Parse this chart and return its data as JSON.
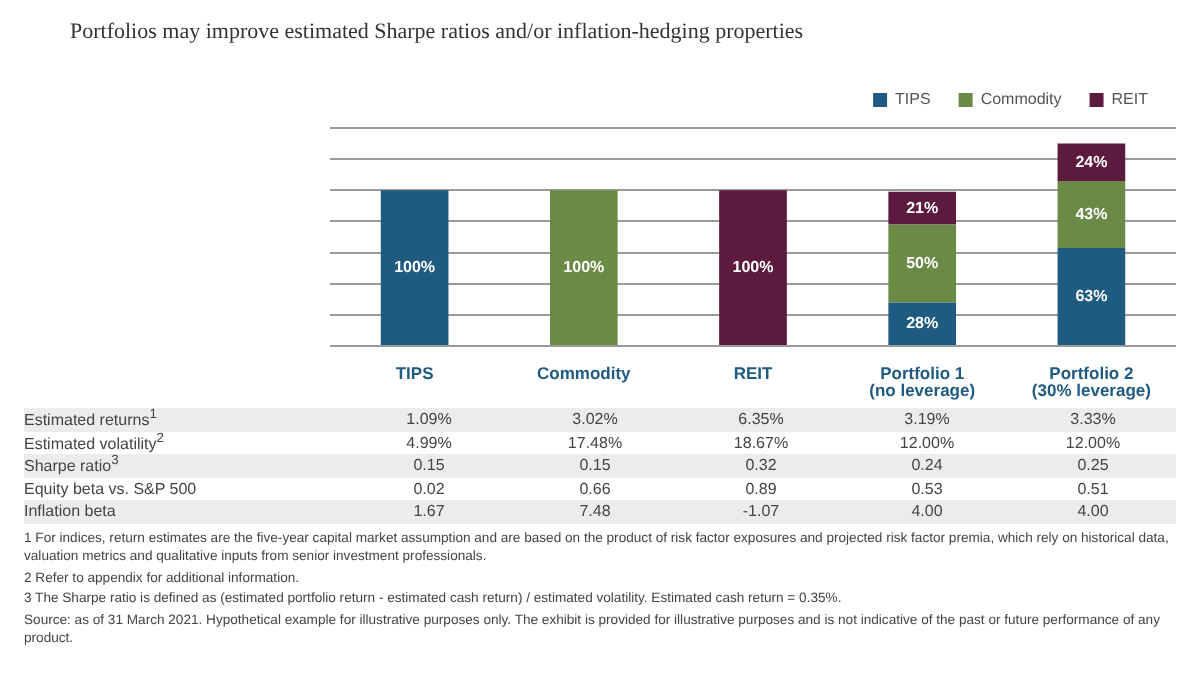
{
  "chart_data": {
    "type": "bar",
    "title": "Portfolios may improve estimated Sharpe ratios and/or inflation-hedging properties",
    "categories": [
      "TIPS",
      "Commodity",
      "REIT",
      "Portfolio 1 (no leverage)",
      "Portfolio 2 (30% leverage)"
    ],
    "stacked": true,
    "ylim": [
      0,
      140
    ],
    "yticks": [
      {
        "value": 0,
        "label": null
      },
      {
        "value": 20,
        "label": null
      },
      {
        "value": 40,
        "label": null
      },
      {
        "value": 60,
        "label": null
      },
      {
        "value": 80,
        "label": null
      },
      {
        "value": 100,
        "label": null
      },
      {
        "value": 120,
        "label": null
      },
      {
        "value": 140,
        "label": null
      }
    ],
    "grid": "y",
    "tick_labels": "x",
    "legend": "top right",
    "series": [
      {
        "name": "TIPS",
        "color": "#1f5a80",
        "values": [
          100,
          0,
          0,
          28,
          63
        ],
        "value_labels": [
          "100%",
          null,
          null,
          "28%",
          "63%"
        ]
      },
      {
        "name": "Commodity",
        "color": "#6a8a45",
        "values": [
          0,
          100,
          0,
          50,
          43
        ],
        "value_labels": [
          null,
          "100%",
          null,
          "50%",
          "43%"
        ]
      },
      {
        "name": "REIT",
        "color": "#5c1a3e",
        "values": [
          0,
          0,
          100,
          21,
          24
        ],
        "value_labels": [
          null,
          null,
          "100%",
          "21%",
          "24%"
        ]
      }
    ],
    "annotations": [
      "Estimated returns$^{1}$",
      "1.09%",
      "3.02%",
      "6.35%",
      "3.19%",
      "3.33%",
      "Estimated volatility$^{2}$",
      "4.99%",
      "17.48%",
      "18.67%",
      "12.00%",
      "12.00%",
      "Sharpe ratio$^{3}$",
      "0.15",
      "0.15",
      "0.32",
      "0.24",
      "0.25",
      "Equity beta vs. S&P 500",
      "0.02",
      "0.66",
      "0.89",
      "0.53",
      "0.51",
      "Inflation beta",
      "1.67",
      "7.48",
      "-1.07",
      "4.00",
      "4.00",
      "1  For indices, return estimates are the five-year capital market assumption and are based on the product of risk factor exposures and projected risk factor premia, which rely on historical data, valuation metrics and qualitative inputs from senior investment professionals.",
      "2  Refer to appendix for additional information.",
      "3  The Sharpe ratio is defined as (estimated portfolio return - estimated cash return) / estimated volatility. Estimated cash return = 0.35%.",
      "Source: as of 31 March 2021. Hypothetical example for illustrative purposes only. The exhibit is provided for illustrative purposes and is not indicative of the past or future performance of any product."
    ]
  }
}
